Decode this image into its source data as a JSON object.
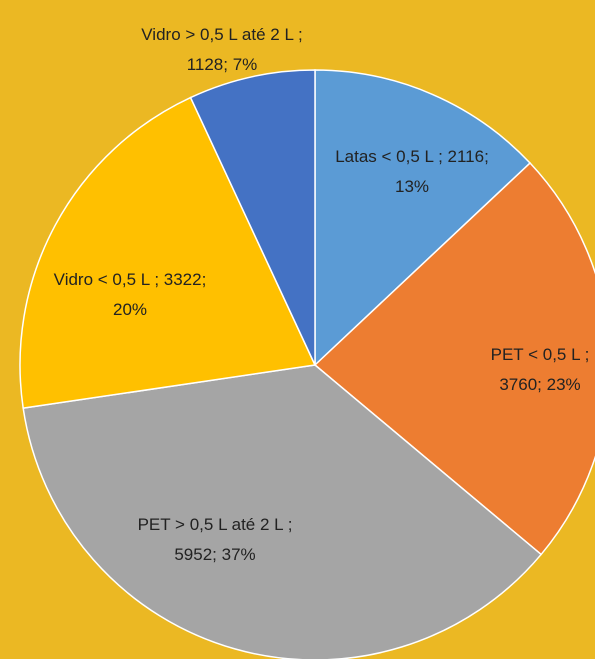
{
  "chart_data": {
    "type": "pie",
    "labels": [
      "Latas < 0,5 L ; 2116; 13%",
      "PET < 0,5 L ; 3760; 23%",
      "PET > 0,5 L até 2 L  ; 5952; 37%",
      "Vidro < 0,5 L ; 3322; 20%",
      "Vidro > 0,5 L até 2 L ; 1128; 7%"
    ],
    "values": [
      2116,
      3760,
      5952,
      3322,
      1128
    ],
    "colors": [
      "#5b9bd5",
      "#ed7d31",
      "#a5a5a5",
      "#ffc000",
      "#4472c4"
    ]
  }
}
